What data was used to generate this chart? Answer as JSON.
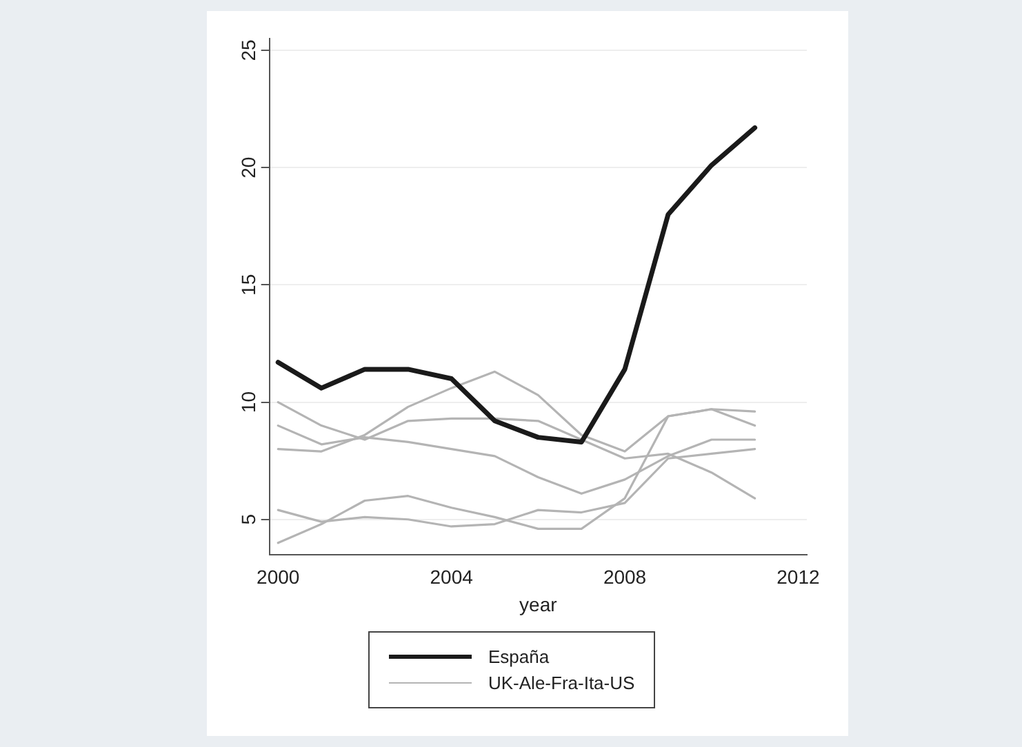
{
  "chart_data": {
    "type": "line",
    "xlabel": "year",
    "x": [
      2000,
      2001,
      2002,
      2003,
      2004,
      2005,
      2006,
      2007,
      2008,
      2009,
      2010,
      2011
    ],
    "xlim": [
      1999.8,
      2012.2
    ],
    "xticks": [
      2000,
      2004,
      2008,
      2012
    ],
    "ylim": [
      3.5,
      25.5
    ],
    "yticks": [
      5,
      10,
      15,
      20,
      25
    ],
    "grid": "y",
    "legend": "bottom",
    "marker": "none",
    "series": [
      {
        "name": "España",
        "color": "#1a1a1a",
        "values": [
          11.7,
          10.6,
          11.4,
          11.4,
          11.0,
          9.2,
          8.5,
          8.3,
          11.4,
          18.0,
          20.1,
          21.7
        ]
      },
      {
        "name": "UK-Ale-Fra-Ita-US",
        "color": "#b4b4b4",
        "values": [
          8.0,
          7.9,
          8.6,
          9.8,
          10.6,
          11.3,
          10.3,
          8.6,
          7.9,
          9.4,
          9.7,
          9.0
        ]
      },
      {
        "color": "#b4b4b4",
        "values": [
          9.0,
          8.2,
          8.5,
          8.3,
          8.0,
          7.7,
          6.8,
          6.1,
          6.7,
          7.7,
          8.4,
          8.4
        ]
      },
      {
        "color": "#b4b4b4",
        "values": [
          10.0,
          9.0,
          8.4,
          9.2,
          9.3,
          9.3,
          9.2,
          8.4,
          7.6,
          7.8,
          7.0,
          5.9
        ]
      },
      {
        "color": "#b4b4b4",
        "values": [
          5.4,
          4.9,
          5.1,
          5.0,
          4.7,
          4.8,
          5.4,
          5.3,
          5.7,
          7.6,
          7.8,
          8.0
        ]
      },
      {
        "color": "#b4b4b4",
        "values": [
          4.0,
          4.8,
          5.8,
          6.0,
          5.5,
          5.1,
          4.6,
          4.6,
          5.9,
          9.4,
          9.7,
          9.6
        ]
      }
    ]
  }
}
